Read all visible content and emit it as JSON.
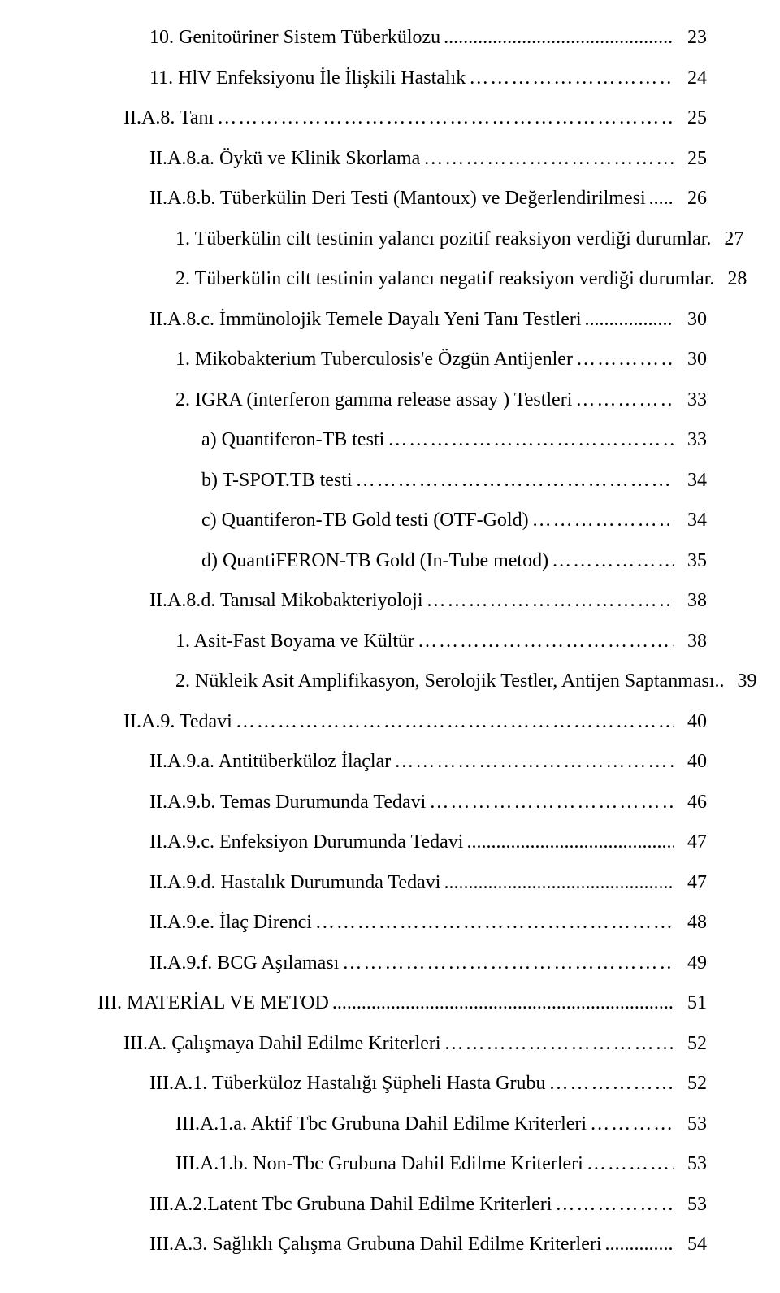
{
  "page": {
    "background_color": "#ffffff",
    "text_color": "#000000",
    "font_family": "Times New Roman",
    "font_size_pt": 18
  },
  "toc": [
    {
      "indent": 2,
      "label": "10. Genitoüriner Sistem Tüberkülozu",
      "leader": "dots",
      "page": "23"
    },
    {
      "indent": 2,
      "label": "11. HlV Enfeksiyonu İle İlişkili Hastalık",
      "leader": "ellipsis",
      "page": "24"
    },
    {
      "indent": 1,
      "label": "II.A.8. Tanı",
      "leader": "ellipsis",
      "page": "25"
    },
    {
      "indent": 2,
      "label": "II.A.8.a. Öykü ve Klinik Skorlama",
      "leader": "ellipsis",
      "page": "25"
    },
    {
      "indent": 2,
      "label": "II.A.8.b. Tüberkülin Deri Testi (Mantoux) ve Değerlendirilmesi",
      "leader": "dots",
      "page": "26"
    },
    {
      "indent": 3,
      "label": "1. Tüberkülin cilt testinin yalancı pozitif reaksiyon verdiği durumlar.",
      "leader": "none",
      "page": "27"
    },
    {
      "indent": 3,
      "label": "2. Tüberkülin cilt testinin yalancı negatif reaksiyon verdiği durumlar.",
      "leader": "none",
      "page": "28"
    },
    {
      "indent": 2,
      "label": "II.A.8.c. İmmünolojik Temele Dayalı Yeni Tanı Testleri",
      "leader": "dots",
      "page": "30"
    },
    {
      "indent": 3,
      "label": "1. Mikobakterium Tuberculosis'e Özgün Antijenler",
      "leader": "ellipsis",
      "page": "30"
    },
    {
      "indent": 3,
      "label": "2. IGRA (interferon gamma release assay ) Testleri",
      "leader": "ellipsis",
      "page": "33"
    },
    {
      "indent": 4,
      "label": "a) Quantiferon-TB testi",
      "leader": "ellipsis",
      "page": "33"
    },
    {
      "indent": 4,
      "label": "b) T-SPOT.TB testi",
      "leader": "ellipsis",
      "page": "34"
    },
    {
      "indent": 4,
      "label": "c) Quantiferon-TB Gold testi (OTF-Gold)",
      "leader": "ellipsis",
      "page": "34"
    },
    {
      "indent": 4,
      "label": "d) QuantiFERON-TB Gold (In-Tube metod)",
      "leader": "ellipsis",
      "page": "35"
    },
    {
      "indent": 2,
      "label": "II.A.8.d. Tanısal Mikobakteriyoloji",
      "leader": "ellipsis",
      "page": "38"
    },
    {
      "indent": 3,
      "label": "1. Asit-Fast Boyama ve Kültür",
      "leader": "ellipsis",
      "page": "38"
    },
    {
      "indent": 3,
      "label": "2. Nükleik Asit Amplifikasyon, Serolojik Testler, Antijen Saptanması..",
      "leader": "none",
      "page": "39"
    },
    {
      "indent": 1,
      "label": "II.A.9. Tedavi",
      "leader": "ellipsis",
      "page": "40"
    },
    {
      "indent": 2,
      "label": "II.A.9.a. Antitüberküloz İlaçlar",
      "leader": "ellipsis",
      "page": "40"
    },
    {
      "indent": 2,
      "label": "II.A.9.b. Temas Durumunda Tedavi",
      "leader": "ellipsis",
      "page": "46"
    },
    {
      "indent": 2,
      "label": "II.A.9.c. Enfeksiyon Durumunda Tedavi",
      "leader": "dots",
      "page": "47"
    },
    {
      "indent": 2,
      "label": "II.A.9.d. Hastalık Durumunda Tedavi",
      "leader": "dots",
      "page": "47"
    },
    {
      "indent": 2,
      "label": "II.A.9.e. İlaç Direnci",
      "leader": "ellipsis",
      "page": "48"
    },
    {
      "indent": 2,
      "label": "II.A.9.f. BCG Aşılaması",
      "leader": "ellipsis",
      "page": "49"
    },
    {
      "indent": 0,
      "label": "III. MATERİAL VE METOD",
      "leader": "dots",
      "page": "51"
    },
    {
      "indent": 1,
      "label": "III.A. Çalışmaya Dahil Edilme  Kriterleri",
      "leader": "ellipsis",
      "page": "52"
    },
    {
      "indent": 2,
      "label": "III.A.1.  Tüberküloz   Hastalığı Şüpheli Hasta Grubu",
      "leader": "ellipsis",
      "page": "52"
    },
    {
      "indent": 3,
      "label": "III.A.1.a.  Aktif Tbc  Grubuna Dahil Edilme Kriterleri",
      "leader": "ellipsis",
      "page": "53"
    },
    {
      "indent": 3,
      "label": "III.A.1.b. Non-Tbc  Grubuna Dahil Edilme Kriterleri",
      "leader": "ellipsis",
      "page": "53"
    },
    {
      "indent": 2,
      "label": "III.A.2.Latent Tbc Grubuna Dahil Edilme Kriterleri",
      "leader": "ellipsis",
      "page": "53"
    },
    {
      "indent": 2,
      "label": "III.A.3. Sağlıklı Çalışma Grubuna Dahil Edilme Kriterleri",
      "leader": "dots",
      "page": "54"
    }
  ]
}
